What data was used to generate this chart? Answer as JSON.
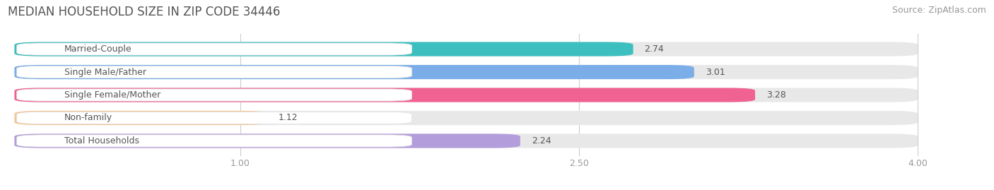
{
  "title": "MEDIAN HOUSEHOLD SIZE IN ZIP CODE 34446",
  "source": "Source: ZipAtlas.com",
  "categories": [
    "Married-Couple",
    "Single Male/Father",
    "Single Female/Mother",
    "Non-family",
    "Total Households"
  ],
  "values": [
    2.74,
    3.01,
    3.28,
    1.12,
    2.24
  ],
  "bar_colors": [
    "#3DBFBF",
    "#7BAEE8",
    "#F06292",
    "#F5C897",
    "#B39DDB"
  ],
  "track_color": "#E8E8E8",
  "label_bg_color": "#FFFFFF",
  "xlim_data": [
    0,
    4.0
  ],
  "x_axis_start": 0.0,
  "x_axis_end": 4.0,
  "xticks": [
    1.0,
    2.5,
    4.0
  ],
  "bar_height": 0.62,
  "background_color": "#FFFFFF",
  "title_fontsize": 12,
  "source_fontsize": 9,
  "label_fontsize": 9,
  "value_fontsize": 9,
  "tick_fontsize": 9,
  "title_color": "#555555",
  "source_color": "#999999",
  "label_color": "#555555",
  "tick_color": "#999999"
}
